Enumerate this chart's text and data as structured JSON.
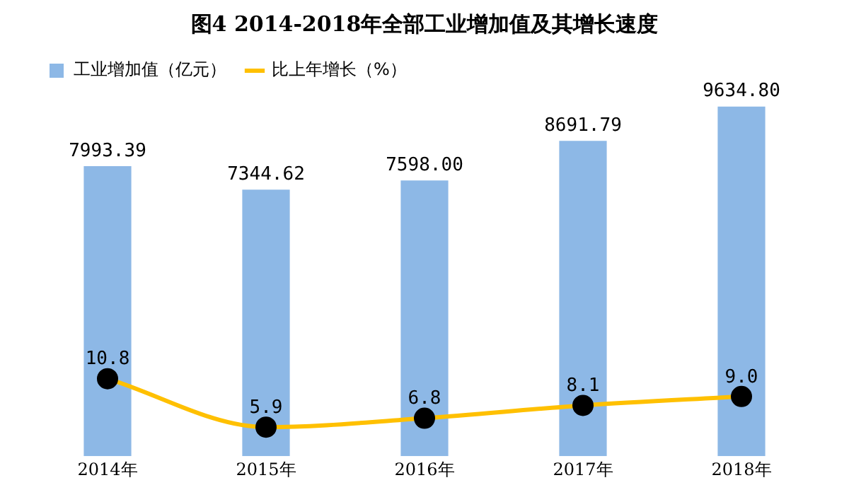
{
  "chart_data": {
    "type": "bar",
    "title": "图4 2014-2018年全部工业增加值及其增长速度",
    "categories": [
      "2014年",
      "2015年",
      "2016年",
      "2017年",
      "2018年"
    ],
    "series": [
      {
        "name": "工业增加值（亿元）",
        "color": "#8db8e6",
        "values": [
          7993.39,
          7344.62,
          7598.0,
          8691.79,
          9634.8
        ],
        "value_labels": [
          "7993.39",
          "7344.62",
          "7598.00",
          "8691.79",
          "9634.80"
        ]
      },
      {
        "name": "比上年增长（%）",
        "type": "line",
        "axis": "y2",
        "color": "#ffc000",
        "values": [
          10.8,
          5.9,
          6.8,
          8.1,
          9.0
        ],
        "value_labels": [
          "10.8",
          "5.9",
          "6.8",
          "8.1",
          "9.0"
        ]
      }
    ],
    "legend": "top left",
    "marker": "circle",
    "grid": false
  }
}
